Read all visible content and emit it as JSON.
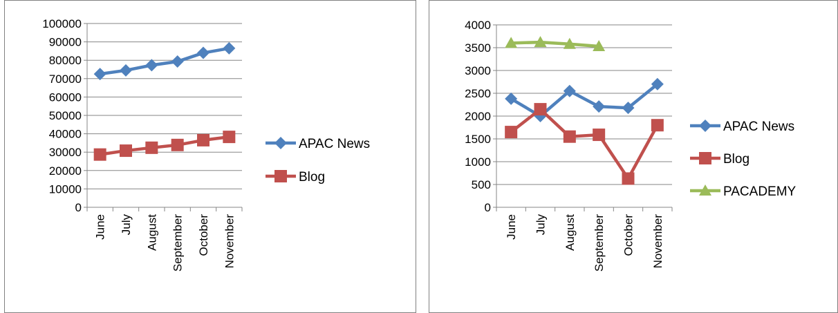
{
  "chart_data": [
    {
      "type": "line",
      "title": "",
      "xlabel": "",
      "ylabel": "",
      "categories": [
        "June",
        "July",
        "August",
        "September",
        "October",
        "November"
      ],
      "ylim": [
        0,
        100000
      ],
      "ytick_step": 10000,
      "grid": true,
      "legend": "right",
      "series": [
        {
          "name": "APAC News",
          "color": "#4f81bd",
          "marker": "diamond",
          "values": [
            72500,
            74500,
            77300,
            79300,
            84000,
            86500
          ]
        },
        {
          "name": "Blog",
          "color": "#c0504d",
          "marker": "square",
          "values": [
            28700,
            30800,
            32400,
            33900,
            36500,
            38300
          ]
        }
      ]
    },
    {
      "type": "line",
      "title": "",
      "xlabel": "",
      "ylabel": "",
      "categories": [
        "June",
        "July",
        "August",
        "September",
        "October",
        "November"
      ],
      "ylim": [
        0,
        4000
      ],
      "ytick_step": 500,
      "grid": true,
      "legend": "right",
      "series": [
        {
          "name": "APAC News",
          "color": "#4f81bd",
          "marker": "diamond",
          "values": [
            2380,
            2000,
            2550,
            2210,
            2180,
            2700
          ]
        },
        {
          "name": "Blog",
          "color": "#c0504d",
          "marker": "square",
          "values": [
            1650,
            2150,
            1550,
            1590,
            630,
            1800
          ]
        },
        {
          "name": "PACADEMY",
          "color": "#9bbb59",
          "marker": "triangle",
          "values": [
            3600,
            3620,
            3580,
            3530,
            null,
            null
          ]
        }
      ]
    }
  ]
}
